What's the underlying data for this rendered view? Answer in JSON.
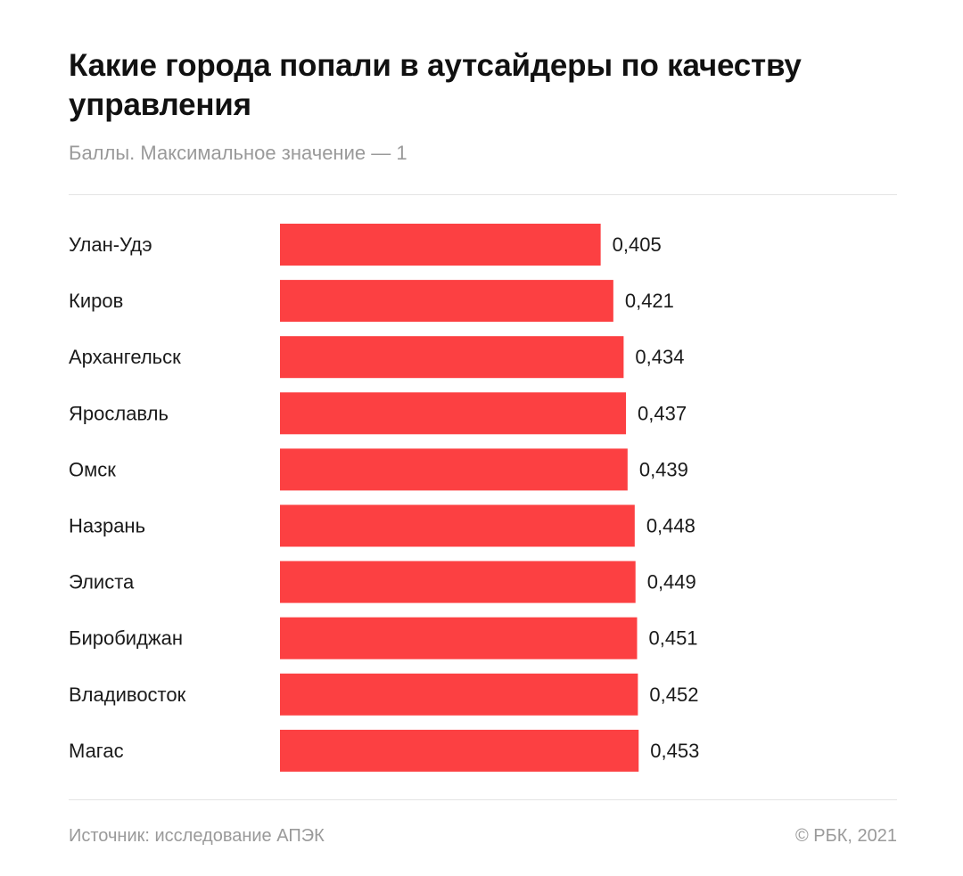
{
  "title": "Какие города попали в аутсайдеры по качеству управления",
  "subtitle": "Баллы. Максимальное значение — 1",
  "footer": {
    "source": "Источник: исследование АПЭК",
    "copyright": "© РБК, 2021"
  },
  "colors": {
    "bar": "#fc4042",
    "text": "#1a1a1a",
    "muted": "#9a9a9a"
  },
  "chart_data": {
    "type": "bar",
    "orientation": "horizontal",
    "categories": [
      "Улан-Удэ",
      "Киров",
      "Архангельск",
      "Ярославль",
      "Омск",
      "Назрань",
      "Элиста",
      "Биробиджан",
      "Владивосток",
      "Магас"
    ],
    "values": [
      0.405,
      0.421,
      0.434,
      0.437,
      0.439,
      0.448,
      0.449,
      0.451,
      0.452,
      0.453
    ],
    "value_labels": [
      "0,405",
      "0,421",
      "0,434",
      "0,437",
      "0,439",
      "0,448",
      "0,449",
      "0,451",
      "0,452",
      "0,453"
    ],
    "title": "Какие города попали в аутсайдеры по качеству управления",
    "subtitle": "Баллы. Максимальное значение — 1",
    "xlabel": "",
    "ylabel": "",
    "grid": false,
    "legend": "none"
  }
}
